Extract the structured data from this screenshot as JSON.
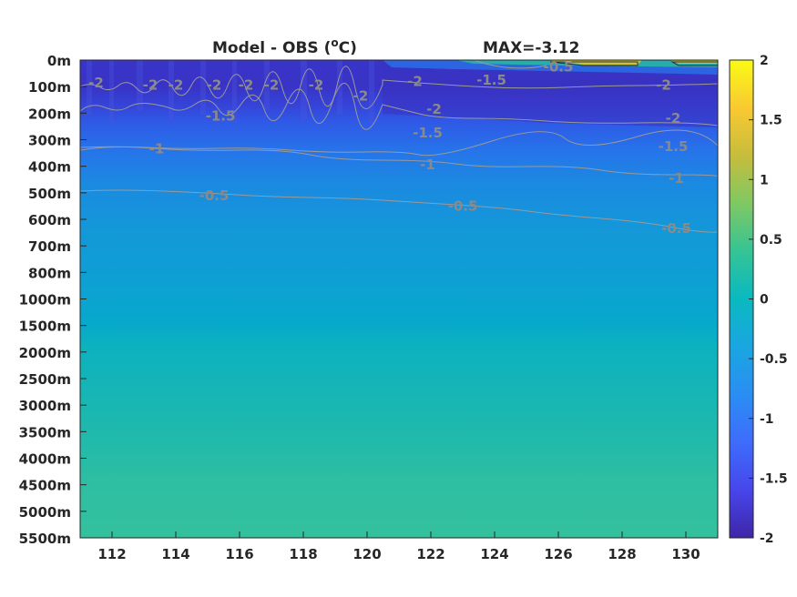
{
  "chart_data": {
    "type": "heatmap",
    "title_left": "Model - OBS (",
    "title_unit_sup": "o",
    "title_unit": "C)",
    "title_right": "MAX=-3.12",
    "x_ticks": [
      "112",
      "114",
      "116",
      "118",
      "120",
      "122",
      "124",
      "126",
      "128",
      "130"
    ],
    "xlim": [
      111,
      131
    ],
    "y_ticks": [
      "0m",
      "100m",
      "200m",
      "300m",
      "400m",
      "500m",
      "600m",
      "700m",
      "800m",
      "1000m",
      "1500m",
      "2000m",
      "2500m",
      "3000m",
      "3500m",
      "4000m",
      "4500m",
      "5000m",
      "5500m"
    ],
    "colorbar": {
      "ticks": [
        "2",
        "1.5",
        "1",
        "0.5",
        "0",
        "-0.5",
        "-1",
        "-1.5",
        "-2"
      ],
      "range": [
        -2,
        2
      ],
      "colormap": "parula"
    },
    "contours": [
      {
        "level": "-2",
        "labels": [
          {
            "text": "-2",
            "x": 111.5,
            "depth_index": 0.85
          },
          {
            "text": "-2",
            "x": 113.2,
            "depth_index": 0.95
          },
          {
            "text": "-2",
            "x": 114.0,
            "depth_index": 0.95
          },
          {
            "text": "-2",
            "x": 115.2,
            "depth_index": 0.95
          },
          {
            "text": "-2",
            "x": 116.2,
            "depth_index": 0.95
          },
          {
            "text": "-2",
            "x": 117.0,
            "depth_index": 0.95
          },
          {
            "text": "-2",
            "x": 118.4,
            "depth_index": 0.95
          },
          {
            "text": "-2",
            "x": 119.8,
            "depth_index": 1.35
          },
          {
            "text": "-2",
            "x": 121.5,
            "depth_index": 0.8
          },
          {
            "text": "-2",
            "x": 122.1,
            "depth_index": 1.85
          },
          {
            "text": "-2",
            "x": 129.3,
            "depth_index": 0.95
          },
          {
            "text": "-2",
            "x": 129.6,
            "depth_index": 2.2
          }
        ]
      },
      {
        "level": "-1.5",
        "labels": [
          {
            "text": "-1.5",
            "x": 115.4,
            "depth_index": 2.1
          },
          {
            "text": "-1.5",
            "x": 121.9,
            "depth_index": 2.75
          },
          {
            "text": "-1.5",
            "x": 123.9,
            "depth_index": 0.75
          },
          {
            "text": "-1.5",
            "x": 129.6,
            "depth_index": 3.25
          }
        ]
      },
      {
        "level": "-1",
        "labels": [
          {
            "text": "-1",
            "x": 113.4,
            "depth_index": 3.35
          },
          {
            "text": "-1",
            "x": 121.9,
            "depth_index": 3.95
          },
          {
            "text": "-1",
            "x": 129.7,
            "depth_index": 4.45
          }
        ]
      },
      {
        "level": "-0.5",
        "labels": [
          {
            "text": "-0.5",
            "x": 115.2,
            "depth_index": 5.1
          },
          {
            "text": "-0.5",
            "x": 123.0,
            "depth_index": 5.5
          },
          {
            "text": "-0.5",
            "x": 129.7,
            "depth_index": 6.35
          }
        ]
      },
      {
        "level": "-0.5",
        "labels": [
          {
            "text": "-0.5",
            "x": 126.0,
            "depth_index": 0.25
          }
        ]
      }
    ]
  }
}
